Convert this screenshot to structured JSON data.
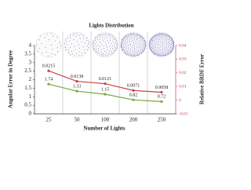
{
  "chart_data": {
    "type": "line",
    "title": "Lights Distribution",
    "x_label": "Number of Lights",
    "y_label": "Angular Error in Degree",
    "y2_label": "Relative BRDF Error",
    "categories": [
      "25",
      "50",
      "100",
      "200",
      "250"
    ],
    "series": [
      {
        "name": "Angular Error in Degree",
        "color": "#7aa83a",
        "values": [
          1.74,
          1.33,
          1.15,
          0.82,
          0.72
        ]
      },
      {
        "name": "Relative BRDF Error",
        "color": "#c8434b",
        "axis": "y2",
        "values": [
          0.0215,
          0.0138,
          0.0121,
          0.0071,
          0.0058
        ]
      }
    ],
    "ylim": [
      0,
      4
    ],
    "yticks": [
      0,
      0.5,
      1,
      1.5,
      2,
      2.5,
      3,
      3.5,
      4
    ],
    "y2lim": [
      -0.01,
      0.04
    ],
    "y2ticks": [
      -0.01,
      0,
      0.01,
      0.02,
      0.03,
      0.04
    ]
  }
}
